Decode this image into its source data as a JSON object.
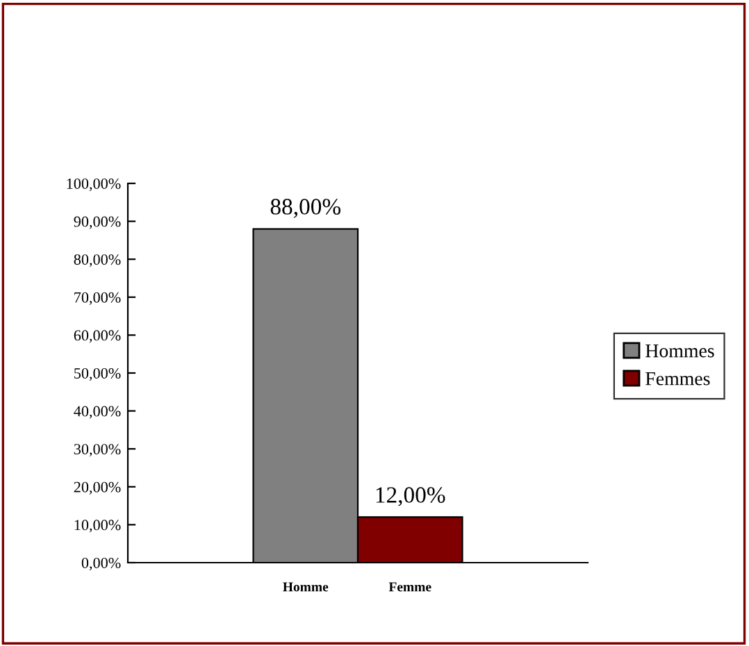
{
  "chart_data": {
    "type": "bar",
    "categories": [
      "Homme",
      "Femme"
    ],
    "series": [
      {
        "name": "Hommes",
        "color": "#808080",
        "values": [
          88,
          null
        ],
        "value_labels": [
          "88,00%",
          null
        ]
      },
      {
        "name": "Femmes",
        "color": "#800000",
        "values": [
          null,
          12
        ],
        "value_labels": [
          null,
          "12,00%"
        ]
      }
    ],
    "ylim": [
      0,
      100
    ],
    "yticks": [
      {
        "value": 0,
        "label": "0,00%"
      },
      {
        "value": 10,
        "label": "10,00%"
      },
      {
        "value": 20,
        "label": "20,00%"
      },
      {
        "value": 30,
        "label": "30,00%"
      },
      {
        "value": 40,
        "label": "40,00%"
      },
      {
        "value": 50,
        "label": "50,00%"
      },
      {
        "value": 60,
        "label": "60,00%"
      },
      {
        "value": 70,
        "label": "70,00%"
      },
      {
        "value": 80,
        "label": "80,00%"
      },
      {
        "value": 90,
        "label": "90,00%"
      },
      {
        "value": 100,
        "label": "100,00%"
      }
    ],
    "grid": false,
    "legend": "right"
  }
}
